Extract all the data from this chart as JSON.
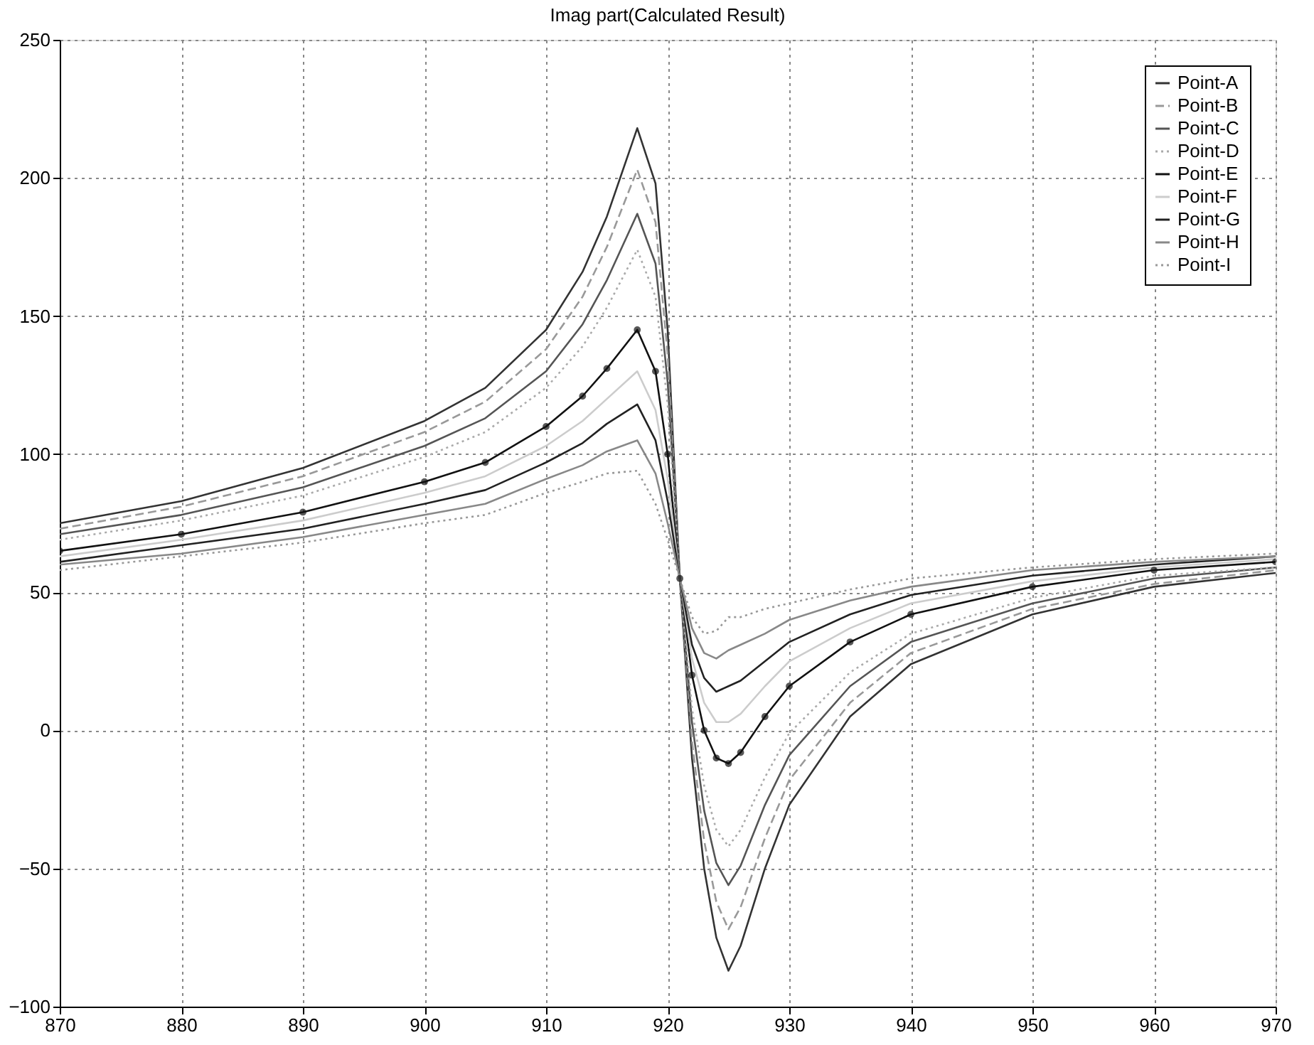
{
  "chart_data": {
    "type": "line",
    "title": "Imag part(Calculated Result)",
    "x": [
      870,
      880,
      890,
      900,
      905,
      910,
      913,
      915,
      917.5,
      919,
      920,
      921,
      922,
      923,
      924,
      925,
      926,
      928,
      930,
      935,
      940,
      950,
      960,
      970
    ],
    "series": [
      {
        "name": "Point-A",
        "color": "#333333",
        "line_style": "solid",
        "values": [
          75,
          83,
          95,
          112,
          124,
          145,
          166,
          186,
          218,
          198,
          145,
          55,
          -10,
          -50,
          -75,
          -87,
          -78,
          -50,
          -27,
          5,
          24,
          42,
          52,
          57
        ]
      },
      {
        "name": "Point-B",
        "color": "#999999",
        "line_style": "dashed",
        "values": [
          73,
          81,
          92,
          108,
          119,
          138,
          157,
          175,
          203,
          184,
          136,
          55,
          -4,
          -40,
          -62,
          -72,
          -64,
          -39,
          -18,
          10,
          28,
          44,
          53,
          58
        ]
      },
      {
        "name": "Point-C",
        "color": "#555555",
        "line_style": "solid",
        "values": [
          71,
          78,
          88,
          103,
          113,
          130,
          147,
          163,
          187,
          169,
          126,
          55,
          3,
          -29,
          -48,
          -56,
          -49,
          -27,
          -9,
          16,
          32,
          46,
          55,
          59
        ]
      },
      {
        "name": "Point-D",
        "color": "#aaaaaa",
        "line_style": "dotted",
        "values": [
          69,
          76,
          85,
          99,
          108,
          124,
          139,
          153,
          174,
          157,
          118,
          55,
          8,
          -20,
          -36,
          -42,
          -36,
          -17,
          -1,
          21,
          35,
          48,
          56,
          59
        ]
      },
      {
        "name": "Point-E",
        "color": "#111111",
        "line_style": "solid",
        "marker": "circle",
        "values": [
          65,
          71,
          79,
          90,
          97,
          110,
          121,
          131,
          145,
          130,
          100,
          55,
          20,
          0,
          -10,
          -12,
          -8,
          5,
          16,
          32,
          42,
          52,
          58,
          61
        ]
      },
      {
        "name": "Point-F",
        "color": "#cccccc",
        "line_style": "solid",
        "values": [
          63,
          69,
          76,
          86,
          92,
          103,
          112,
          120,
          130,
          116,
          91,
          55,
          26,
          10,
          3,
          3,
          6,
          16,
          25,
          37,
          46,
          54,
          59,
          62
        ]
      },
      {
        "name": "Point-G",
        "color": "#222222",
        "line_style": "solid",
        "values": [
          61,
          67,
          73,
          82,
          87,
          97,
          104,
          111,
          118,
          105,
          83,
          55,
          31,
          19,
          14,
          16,
          18,
          25,
          32,
          42,
          49,
          56,
          60,
          63
        ]
      },
      {
        "name": "Point-H",
        "color": "#888888",
        "line_style": "solid",
        "values": [
          60,
          64,
          70,
          78,
          82,
          91,
          96,
          101,
          105,
          93,
          75,
          55,
          37,
          28,
          26,
          29,
          31,
          35,
          40,
          47,
          52,
          58,
          61,
          63
        ]
      },
      {
        "name": "Point-I",
        "color": "#999999",
        "line_style": "dotted",
        "values": [
          58,
          63,
          68,
          75,
          78,
          86,
          90,
          93,
          94,
          82,
          69,
          55,
          41,
          35,
          36,
          41,
          41,
          44,
          46,
          51,
          55,
          59,
          62,
          64
        ]
      }
    ],
    "xlim": [
      870,
      970
    ],
    "xticks": [
      870,
      880,
      890,
      900,
      910,
      920,
      930,
      940,
      950,
      960,
      970
    ],
    "ylim": [
      -100,
      250
    ],
    "yticks": [
      -100,
      -50,
      0,
      50,
      100,
      150,
      200,
      250
    ],
    "grid": true,
    "legend": "top right"
  }
}
